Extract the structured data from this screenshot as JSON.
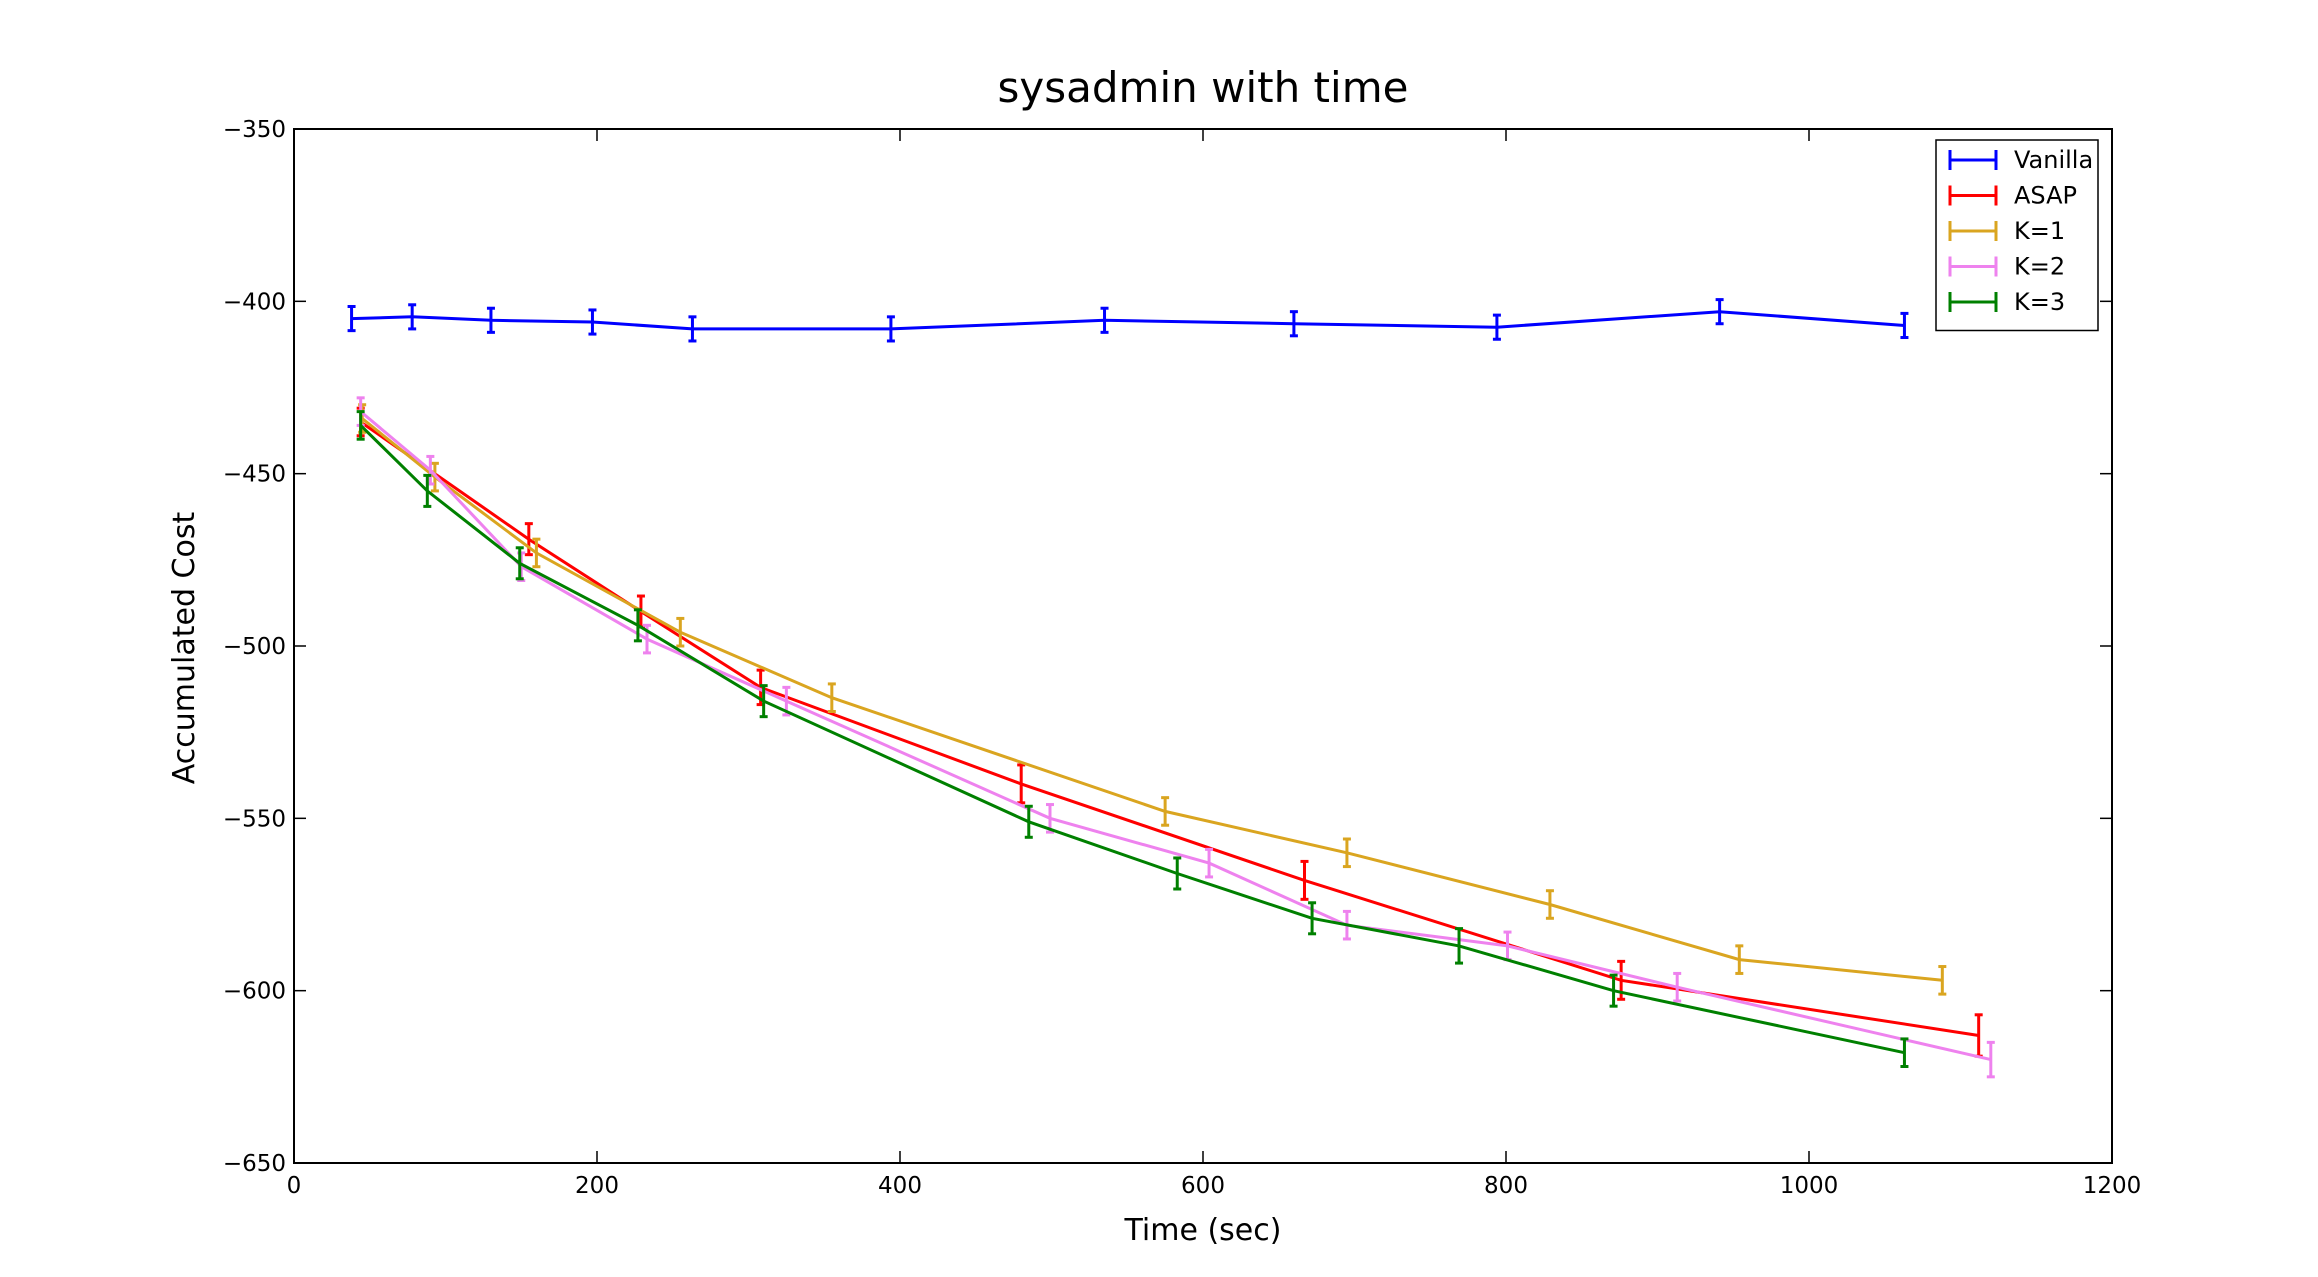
{
  "chart_data": {
    "type": "line",
    "title": "sysadmin with time",
    "xlabel": "Time (sec)",
    "ylabel": "Accumulated Cost",
    "xlim": [
      0,
      1200
    ],
    "ylim": [
      -650,
      -350
    ],
    "xticks": [
      0,
      200,
      400,
      600,
      800,
      1000,
      1200
    ],
    "yticks": [
      -350,
      -400,
      -450,
      -500,
      -550,
      -600,
      -650
    ],
    "grid": false,
    "legend": "top-right",
    "series": [
      {
        "name": "Vanilla",
        "color": "#0000ff",
        "x": [
          38,
          78,
          130,
          197,
          263,
          394,
          535,
          660,
          794,
          941,
          1063
        ],
        "y": [
          -405,
          -404.5,
          -405.5,
          -406,
          -408,
          -408,
          -405.5,
          -406.5,
          -407.5,
          -403,
          -407
        ],
        "err": [
          3.5,
          3.5,
          3.5,
          3.5,
          3.5,
          3.5,
          3.5,
          3.5,
          3.5,
          3.5,
          3.5
        ]
      },
      {
        "name": "ASAP",
        "color": "#ff0000",
        "x": [
          44,
          155,
          229,
          308,
          480,
          667,
          876,
          1112
        ],
        "y": [
          -435,
          -469,
          -490,
          -512,
          -540,
          -568,
          -597,
          -613
        ],
        "err": [
          4,
          4.5,
          4.5,
          5,
          5.5,
          5.5,
          5.5,
          6
        ]
      },
      {
        "name": "K=1",
        "color": "#daa520",
        "x": [
          45,
          93,
          160,
          255,
          355,
          575,
          695,
          829,
          954,
          1088
        ],
        "y": [
          -434,
          -451,
          -473,
          -496,
          -515,
          -548,
          -560,
          -575,
          -591,
          -597
        ],
        "err": [
          4,
          4,
          4,
          4,
          4,
          4,
          4,
          4,
          4,
          4
        ]
      },
      {
        "name": "K=2",
        "color": "#ee82ee",
        "x": [
          44,
          90,
          150,
          233,
          325,
          499,
          604,
          695,
          801,
          913,
          1120
        ],
        "y": [
          -432,
          -449,
          -477,
          -498,
          -516,
          -550,
          -563,
          -581,
          -587,
          -599,
          -620
        ],
        "err": [
          4,
          4,
          4,
          4,
          4,
          4,
          4,
          4,
          4,
          4,
          5
        ]
      },
      {
        "name": "K=3",
        "color": "#008000",
        "x": [
          44,
          88,
          149,
          227,
          310,
          485,
          583,
          672,
          769,
          871,
          1063
        ],
        "y": [
          -436,
          -455,
          -476,
          -494,
          -516,
          -551,
          -566,
          -579,
          -587,
          -600,
          -618
        ],
        "err": [
          4,
          4.5,
          4.5,
          4.5,
          4.5,
          4.5,
          4.5,
          4.5,
          5,
          4.5,
          4
        ]
      }
    ]
  }
}
